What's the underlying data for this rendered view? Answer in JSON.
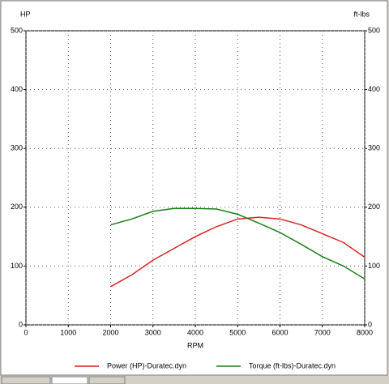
{
  "chart_data": {
    "type": "line",
    "x_label": "RPM",
    "y_label": "HP",
    "y2_label": "ft-lbs",
    "x": [
      2000,
      2500,
      3000,
      3500,
      4000,
      4500,
      5000,
      5500,
      6000,
      6500,
      7000,
      7500,
      8000
    ],
    "series": [
      {
        "name": "Power (HP)-Duratec.dyn",
        "color": "#e02020",
        "values": [
          65,
          85,
          110,
          130,
          150,
          167,
          180,
          183,
          180,
          170,
          155,
          140,
          115
        ]
      },
      {
        "name": "Torque (ft-lbs)-Duratec.dyn",
        "color": "#188018",
        "axis": "y2",
        "values": [
          170,
          180,
          193,
          198,
          198,
          197,
          188,
          173,
          157,
          137,
          116,
          100,
          78
        ]
      }
    ],
    "xlim": [
      0,
      8000
    ],
    "xticks": [
      0,
      1000,
      2000,
      3000,
      4000,
      5000,
      6000,
      7000,
      8000
    ],
    "ylim": [
      0,
      500
    ],
    "yticks": [
      0,
      100,
      200,
      300,
      400,
      500
    ],
    "y2lim": [
      0,
      500
    ],
    "y2ticks": [
      0,
      100,
      200,
      300,
      400,
      500
    ],
    "grid": true
  }
}
